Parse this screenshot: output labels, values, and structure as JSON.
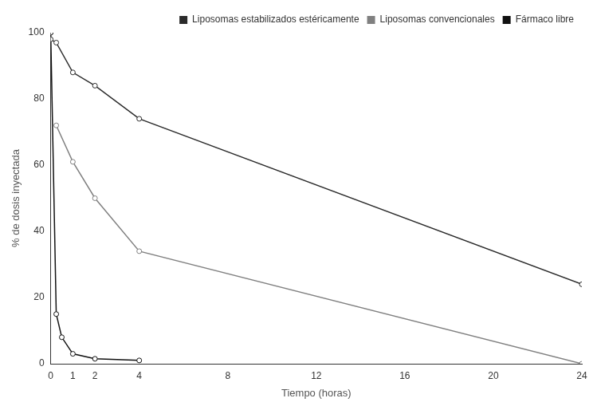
{
  "chart_data": {
    "type": "line",
    "x_label": "Tiempo (horas)",
    "y_label": "% de dosis inyectada",
    "xlim": [
      0,
      24
    ],
    "xticks": [
      0,
      1,
      2,
      4,
      8,
      12,
      16,
      20,
      24
    ],
    "ylim": [
      0,
      100
    ],
    "yticks": [
      0,
      20,
      40,
      60,
      80,
      100
    ],
    "grid": false,
    "legend": "upper right",
    "series": [
      {
        "name": "Liposomas estabilizados estéricamente",
        "color": "#2b2b2b",
        "marker": "circle",
        "line_style": "solid",
        "x": [
          0,
          0.25,
          1,
          2,
          4,
          24
        ],
        "values": [
          98,
          97,
          88,
          84,
          74,
          24
        ]
      },
      {
        "name": "Liposomas convencionales",
        "color": "#808080",
        "marker": "circle",
        "line_style": "solid",
        "x": [
          0.25,
          1,
          2,
          4,
          24
        ],
        "values": [
          72,
          61,
          50,
          34,
          0
        ]
      },
      {
        "name": "Fármaco libre",
        "color": "#111111",
        "marker": "circle",
        "line_style": "solid",
        "x": [
          0,
          0.25,
          0.5,
          1,
          2,
          4
        ],
        "values": [
          100,
          15,
          8,
          3,
          1.5,
          1
        ]
      }
    ]
  }
}
